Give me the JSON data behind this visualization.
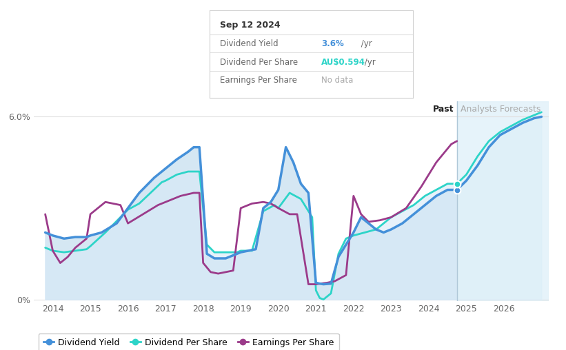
{
  "tooltip_date": "Sep 12 2024",
  "tooltip_yield_label": "Dividend Yield",
  "tooltip_yield_val": "3.6%",
  "tooltip_yield_suffix": " /yr",
  "tooltip_dps_label": "Dividend Per Share",
  "tooltip_dps_val": "AU$0.594",
  "tooltip_dps_suffix": " /yr",
  "tooltip_eps_label": "Earnings Per Share",
  "tooltip_eps_val": "No data",
  "past_label": "Past",
  "forecast_label": "Analysts Forecasts",
  "past_x": 2024.75,
  "blue_color": "#4490d9",
  "cyan_color": "#2dd4c8",
  "purple_color": "#9b3b8a",
  "fill_past_color": "#c8dff0",
  "fill_forecast_color": "#daeef8",
  "legend_entries": [
    "Dividend Yield",
    "Dividend Per Share",
    "Earnings Per Share"
  ],
  "legend_colors": [
    "#4490d9",
    "#2dd4c8",
    "#9b3b8a"
  ],
  "div_yield_x": [
    2013.8,
    2014.0,
    2014.3,
    2014.6,
    2014.9,
    2015.0,
    2015.3,
    2015.7,
    2016.0,
    2016.3,
    2016.7,
    2017.0,
    2017.3,
    2017.6,
    2017.75,
    2017.9,
    2018.1,
    2018.3,
    2018.6,
    2018.9,
    2019.0,
    2019.2,
    2019.4,
    2019.6,
    2019.8,
    2020.0,
    2020.2,
    2020.4,
    2020.6,
    2020.8,
    2021.0,
    2021.1,
    2021.2,
    2021.4,
    2021.6,
    2021.8,
    2022.0,
    2022.2,
    2022.4,
    2022.6,
    2022.8,
    2023.0,
    2023.3,
    2023.6,
    2023.9,
    2024.2,
    2024.5,
    2024.75,
    2025.0,
    2025.3,
    2025.6,
    2025.9,
    2026.2,
    2026.5,
    2026.8,
    2027.0
  ],
  "div_yield_y": [
    2.2,
    2.1,
    2.0,
    2.05,
    2.05,
    2.1,
    2.2,
    2.5,
    3.0,
    3.5,
    4.0,
    4.3,
    4.6,
    4.85,
    5.0,
    5.0,
    1.5,
    1.35,
    1.35,
    1.5,
    1.55,
    1.6,
    1.65,
    3.0,
    3.2,
    3.6,
    5.0,
    4.5,
    3.8,
    3.5,
    0.55,
    0.52,
    0.5,
    0.52,
    1.4,
    1.8,
    2.2,
    2.7,
    2.5,
    2.3,
    2.2,
    2.3,
    2.5,
    2.8,
    3.1,
    3.4,
    3.6,
    3.6,
    3.9,
    4.4,
    5.0,
    5.4,
    5.6,
    5.8,
    5.95,
    6.0
  ],
  "div_per_share_x": [
    2013.8,
    2014.0,
    2014.3,
    2014.6,
    2014.9,
    2015.0,
    2015.4,
    2015.8,
    2016.0,
    2016.3,
    2016.6,
    2016.9,
    2017.0,
    2017.3,
    2017.6,
    2017.75,
    2017.9,
    2018.1,
    2018.3,
    2018.6,
    2018.9,
    2019.0,
    2019.3,
    2019.6,
    2019.9,
    2020.0,
    2020.3,
    2020.6,
    2020.9,
    2021.0,
    2021.1,
    2021.2,
    2021.4,
    2021.6,
    2021.8,
    2022.0,
    2022.3,
    2022.6,
    2022.9,
    2023.0,
    2023.3,
    2023.6,
    2023.9,
    2024.2,
    2024.5,
    2024.75,
    2025.0,
    2025.3,
    2025.6,
    2025.9,
    2026.2,
    2026.5,
    2026.8,
    2027.0
  ],
  "div_per_share_y": [
    1.7,
    1.6,
    1.55,
    1.6,
    1.65,
    1.75,
    2.2,
    2.7,
    2.95,
    3.15,
    3.5,
    3.85,
    3.9,
    4.1,
    4.2,
    4.2,
    4.2,
    1.8,
    1.55,
    1.55,
    1.55,
    1.6,
    1.6,
    2.9,
    3.1,
    3.0,
    3.5,
    3.3,
    2.7,
    0.3,
    0.05,
    0.0,
    0.2,
    1.5,
    2.0,
    2.1,
    2.2,
    2.3,
    2.6,
    2.7,
    2.9,
    3.1,
    3.4,
    3.6,
    3.8,
    3.8,
    4.1,
    4.7,
    5.2,
    5.5,
    5.7,
    5.9,
    6.05,
    6.15
  ],
  "earnings_x": [
    2013.8,
    2014.0,
    2014.2,
    2014.4,
    2014.6,
    2014.9,
    2015.0,
    2015.4,
    2015.8,
    2016.0,
    2016.4,
    2016.8,
    2017.0,
    2017.4,
    2017.75,
    2017.9,
    2018.0,
    2018.2,
    2018.4,
    2018.6,
    2018.8,
    2019.0,
    2019.3,
    2019.6,
    2019.8,
    2020.0,
    2020.3,
    2020.5,
    2020.8,
    2021.0,
    2021.3,
    2021.5,
    2021.8,
    2022.0,
    2022.2,
    2022.4,
    2022.7,
    2023.0,
    2023.4,
    2023.8,
    2024.2,
    2024.6,
    2024.75
  ],
  "earnings_y": [
    2.8,
    1.6,
    1.2,
    1.4,
    1.7,
    2.0,
    2.8,
    3.2,
    3.1,
    2.5,
    2.8,
    3.1,
    3.2,
    3.4,
    3.5,
    3.5,
    1.2,
    0.9,
    0.85,
    0.9,
    0.95,
    3.0,
    3.15,
    3.2,
    3.15,
    3.0,
    2.8,
    2.8,
    0.5,
    0.5,
    0.55,
    0.6,
    0.8,
    3.4,
    2.8,
    2.55,
    2.6,
    2.7,
    3.0,
    3.7,
    4.5,
    5.1,
    5.2
  ],
  "xlim": [
    2013.5,
    2027.2
  ],
  "ylim": [
    -0.05,
    6.5
  ],
  "xticks": [
    2014,
    2015,
    2016,
    2017,
    2018,
    2019,
    2020,
    2021,
    2022,
    2023,
    2024,
    2025,
    2026
  ],
  "dot_x": 2024.75,
  "dot_y_blue": 3.6,
  "dot_y_cyan": 3.8,
  "ytick_positions": [
    0,
    6.0
  ],
  "ytick_labels": [
    "0%",
    "6.0%"
  ]
}
